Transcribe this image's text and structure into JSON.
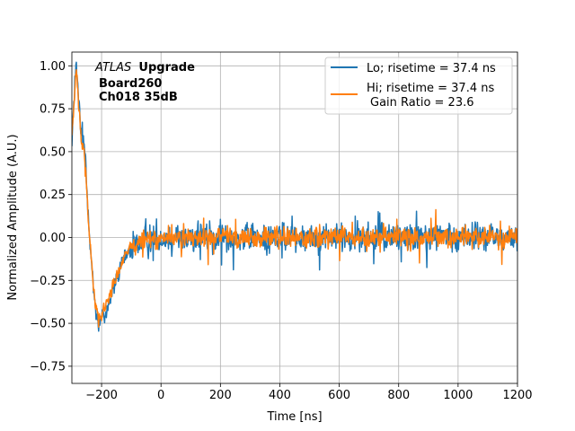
{
  "chart_data": {
    "type": "line",
    "xlabel": "Time [ns]",
    "ylabel": "Normalized Amplitude (A.U.)",
    "xlim": [
      -300,
      1200
    ],
    "ylim": [
      -0.85,
      1.08
    ],
    "xticks": [
      -200,
      0,
      200,
      400,
      600,
      800,
      1000,
      1200
    ],
    "xtick_labels": [
      "−200",
      "0",
      "200",
      "400",
      "600",
      "800",
      "1000",
      "1200"
    ],
    "yticks": [
      -0.75,
      -0.5,
      -0.25,
      0.0,
      0.25,
      0.5,
      0.75,
      1.0
    ],
    "ytick_labels": [
      "−0.75",
      "−0.50",
      "−0.25",
      "0.00",
      "0.25",
      "0.50",
      "0.75",
      "1.00"
    ],
    "grid": true,
    "legend_position": "top-right",
    "annotation": {
      "atlas": "ATLAS",
      "upgrade": "Upgrade",
      "board": "Board260",
      "channel": "Ch018 35dB"
    },
    "series": [
      {
        "name": "Lo; risetime = 37.4 ns",
        "color": "#1f77b4",
        "envelope": [
          {
            "t": -300,
            "v": 0.58
          },
          {
            "t": -285,
            "v": 1.0
          },
          {
            "t": -270,
            "v": 0.62
          },
          {
            "t": -255,
            "v": 0.5
          },
          {
            "t": -240,
            "v": 0.0
          },
          {
            "t": -225,
            "v": -0.35
          },
          {
            "t": -210,
            "v": -0.5
          },
          {
            "t": -190,
            "v": -0.45
          },
          {
            "t": -160,
            "v": -0.3
          },
          {
            "t": -130,
            "v": -0.15
          },
          {
            "t": -100,
            "v": -0.06
          },
          {
            "t": -60,
            "v": -0.02
          },
          {
            "t": 0,
            "v": 0.0
          },
          {
            "t": 1200,
            "v": 0.0
          }
        ],
        "noise_amplitude": 0.16
      },
      {
        "name": "Hi; risetime = 37.4 ns",
        "label_extra": "Gain Ratio = 23.6",
        "color": "#ff7f0e",
        "envelope": [
          {
            "t": -300,
            "v": 0.6
          },
          {
            "t": -285,
            "v": 0.97
          },
          {
            "t": -270,
            "v": 0.6
          },
          {
            "t": -255,
            "v": 0.45
          },
          {
            "t": -240,
            "v": 0.0
          },
          {
            "t": -225,
            "v": -0.33
          },
          {
            "t": -210,
            "v": -0.48
          },
          {
            "t": -190,
            "v": -0.42
          },
          {
            "t": -160,
            "v": -0.28
          },
          {
            "t": -130,
            "v": -0.14
          },
          {
            "t": -100,
            "v": -0.05
          },
          {
            "t": -60,
            "v": -0.02
          },
          {
            "t": 0,
            "v": 0.0
          },
          {
            "t": 1200,
            "v": 0.0
          }
        ],
        "noise_amplitude": 0.11
      }
    ]
  }
}
